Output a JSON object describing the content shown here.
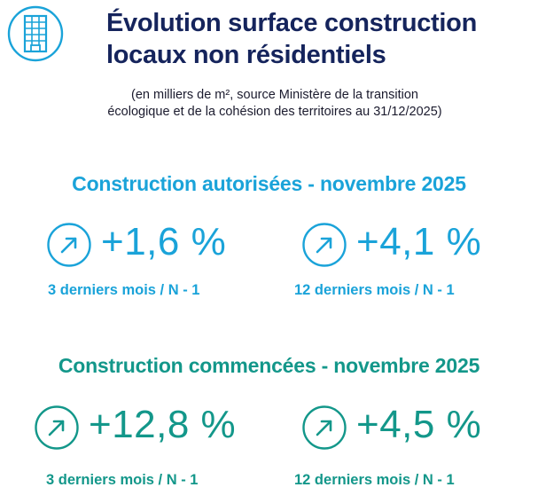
{
  "header": {
    "icon": "office-building-icon",
    "title_line1": "Évolution surface construction",
    "title_line2": "locaux non résidentiels"
  },
  "subtitle": {
    "line1": "(en milliers de m², source Ministère de la transition",
    "line2": "écologique et de la cohésion des territoires au 31/12/2025)"
  },
  "colors": {
    "title": "#15245c",
    "authorized": "#1aa3d9",
    "started": "#13978a"
  },
  "sections": [
    {
      "title": "Construction autorisées - novembre 2025",
      "figures": [
        {
          "icon": "arrow-up-right-circle-icon",
          "value": "+1,6 %",
          "caption": "3 derniers mois / N - 1"
        },
        {
          "icon": "arrow-up-right-circle-icon",
          "value": "+4,1 %",
          "caption": "12 derniers mois / N - 1"
        }
      ]
    },
    {
      "title": "Construction commencées - novembre 2025",
      "figures": [
        {
          "icon": "arrow-up-right-circle-icon",
          "value": "+12,8 %",
          "caption": "3 derniers mois / N - 1"
        },
        {
          "icon": "arrow-up-right-circle-icon",
          "value": "+4,5 %",
          "caption": "12 derniers mois / N - 1"
        }
      ]
    }
  ]
}
